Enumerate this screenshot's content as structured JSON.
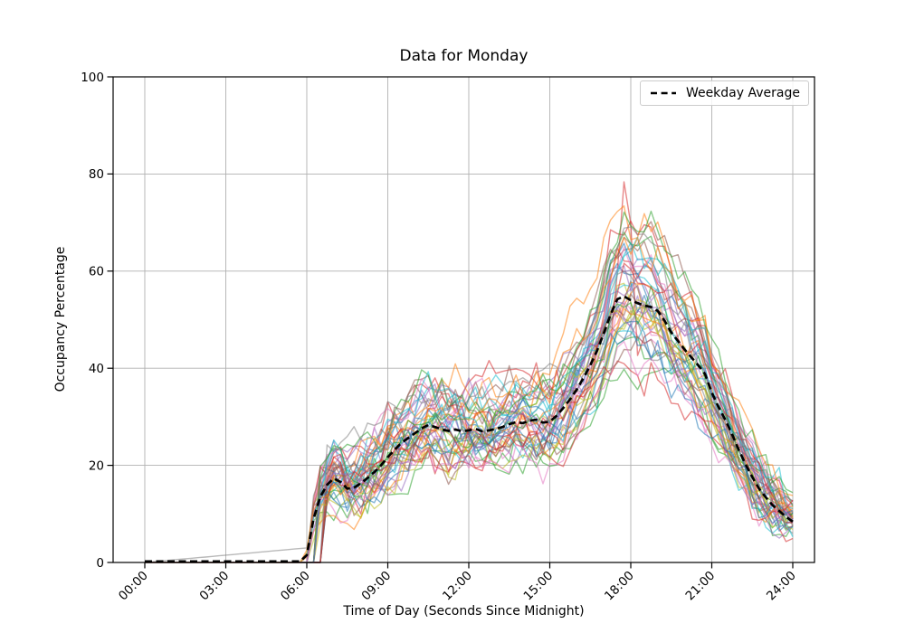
{
  "window": {
    "background": "#ffffff"
  },
  "chart_data": {
    "type": "line",
    "title": "Data for Monday",
    "xlabel": "Time of Day (Seconds Since Midnight)",
    "ylabel": "Occupancy Percentage",
    "x_tick_labels": [
      "00:00",
      "03:00",
      "06:00",
      "09:00",
      "12:00",
      "15:00",
      "18:00",
      "21:00",
      "24:00"
    ],
    "x_tick_hours": [
      0,
      3,
      6,
      9,
      12,
      15,
      18,
      21,
      24
    ],
    "y_ticks": [
      0,
      20,
      40,
      60,
      80,
      100
    ],
    "ylim": [
      0,
      100
    ],
    "xlim_hours": [
      -1.17,
      24.83
    ],
    "grid": true,
    "grid_color": "#b0b0b0",
    "axis_color": "#000000",
    "legend": {
      "label": "Weekday Average",
      "position": "upper-right"
    },
    "average_series": {
      "name": "Weekday Average",
      "color": "#000000",
      "dash": [
        8,
        4.5
      ],
      "width": 2.7,
      "x_start_hour": 0,
      "x_step_hours": 0.25,
      "values": [
        0.2,
        0.2,
        0.2,
        0.2,
        0.2,
        0.2,
        0.2,
        0.2,
        0.2,
        0.2,
        0.2,
        0.2,
        0.2,
        0.2,
        0.2,
        0.2,
        0.2,
        0.2,
        0.2,
        0.2,
        0.2,
        0.2,
        0.2,
        0.2,
        1.5,
        9,
        13.5,
        16,
        17.3,
        16.6,
        15.2,
        15.4,
        16.3,
        17.4,
        18.6,
        20,
        21.7,
        23.2,
        24.6,
        25.6,
        26.6,
        27.6,
        28.3,
        27.9,
        27.4,
        27.1,
        27.4,
        27.0,
        27.2,
        27.5,
        27.0,
        27.2,
        27.5,
        27.9,
        28.5,
        28.9,
        28.7,
        29.2,
        29.4,
        28.8,
        29.0,
        30.2,
        31.8,
        33.6,
        35.6,
        38.0,
        40.6,
        43.6,
        47.2,
        51.0,
        54.2,
        54.8,
        54.0,
        53.4,
        52.9,
        52.6,
        51.8,
        49.8,
        47.4,
        45.6,
        43.8,
        42.2,
        40.6,
        38.8,
        35.0,
        32.0,
        29.4,
        26.4,
        23.2,
        20.2,
        17.6,
        15.2,
        13.4,
        11.8,
        10.6,
        9.4,
        8.4
      ]
    },
    "ensemble": {
      "description": "Individual Monday occupancy traces; zero overnight, sharp rise at 06:00, morning bump ~17%, midday plateau ~27%, evening peak ~55% near 18:00, decline to ~8% by 24:00",
      "count": 45,
      "alpha": 0.55,
      "line_width": 1.4,
      "colors": [
        "#1f77b4",
        "#ff7f0e",
        "#2ca02c",
        "#d62728",
        "#9467bd",
        "#8c564b",
        "#e377c2",
        "#7f7f7f",
        "#bcbd22",
        "#17becf"
      ],
      "value_scale_range": [
        0.78,
        1.28
      ],
      "start_hour_range": [
        5.95,
        6.7
      ],
      "noise_amplitude": 9,
      "overnight_outlier": {
        "color": "#7f7f7f",
        "from_hour": 0,
        "to_hour": 6,
        "end_value": 3
      },
      "max_spike": {
        "color": "#d62728",
        "hour": 17.8,
        "peak_value": 79
      }
    }
  }
}
